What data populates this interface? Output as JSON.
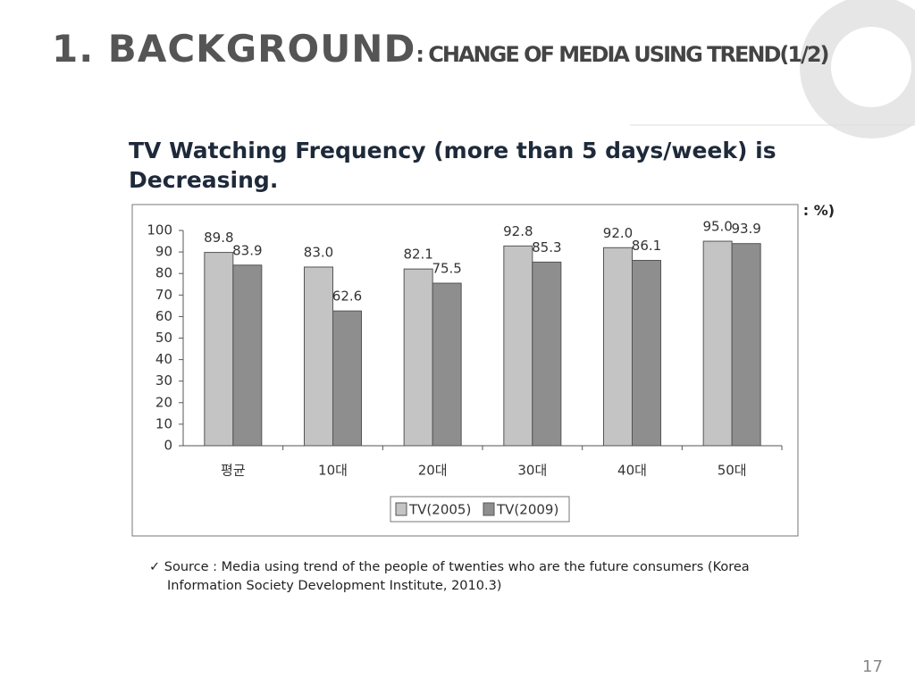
{
  "slide": {
    "title": "1. BACKGROUND",
    "title_suffix": ": CHANGE OF MEDIA USING TREND(1/2)",
    "heading": "TV Watching Frequency (more than 5 days/week) is Decreasing.",
    "unit": "(unit : %)",
    "source": "Source : Media using trend of the people of twenties who are the future consumers (Korea Information Society Development Institute, 2010.3)",
    "page_number": "17"
  },
  "chart_data": {
    "type": "bar",
    "categories": [
      "평균",
      "10대",
      "20대",
      "30대",
      "40대",
      "50대"
    ],
    "series": [
      {
        "name": "TV(2005)",
        "color": "#c4c4c4",
        "values": [
          89.8,
          83.0,
          82.1,
          92.8,
          92.0,
          95.0
        ],
        "value_labels": [
          "89.8",
          "83.0",
          "82.1",
          "92.8",
          "92.0",
          "95.0"
        ]
      },
      {
        "name": "TV(2009)",
        "color": "#8e8e8e",
        "values": [
          83.9,
          62.6,
          75.5,
          85.3,
          86.1,
          93.9
        ],
        "value_labels": [
          "83.9",
          "62.6",
          "75.5",
          "85.3",
          "86.1",
          "93.9"
        ]
      }
    ],
    "ylim": [
      0,
      100
    ],
    "yticks": [
      0,
      10,
      20,
      30,
      40,
      50,
      60,
      70,
      80,
      90,
      100
    ],
    "grid": false
  }
}
